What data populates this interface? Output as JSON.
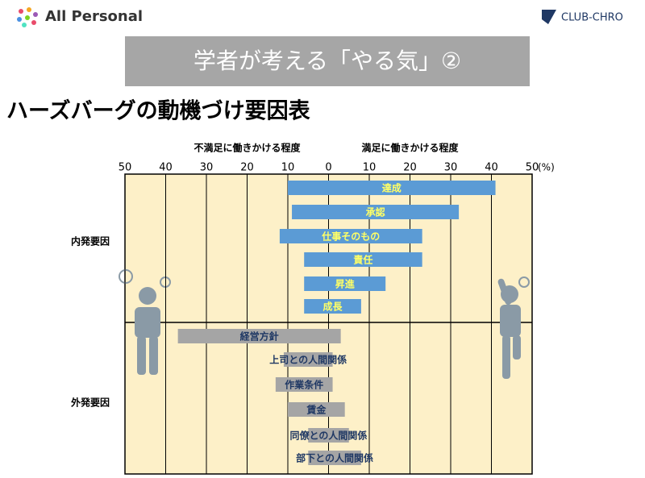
{
  "header": {
    "logo": "All Personal",
    "brand": "CLUB-CHRO",
    "banner": "学者が考える「やる気」②",
    "title": "ハーズバーグの動機づけ要因表"
  },
  "chart_data": {
    "type": "diverging-bar",
    "left_label": "不満足に働きかける程度",
    "right_label": "満足に働きかける程度",
    "unit": "(%)",
    "xlim": [
      -50,
      50
    ],
    "xticks": [
      {
        "value": -50,
        "label": "50"
      },
      {
        "value": -40,
        "label": "40"
      },
      {
        "value": -30,
        "label": "30"
      },
      {
        "value": -20,
        "label": "20"
      },
      {
        "value": -10,
        "label": "10"
      },
      0,
      10,
      20,
      30,
      40,
      50
    ],
    "grid": true,
    "groups": [
      {
        "name": "内発要因",
        "color": "#5b9bd5",
        "label_color": "#ffff66",
        "categories": [
          "達成",
          "承認",
          "仕事そのもの",
          "責任",
          "昇進",
          "成長"
        ],
        "dissatisfaction": [
          -10,
          -9,
          -12,
          -6,
          -6,
          -6
        ],
        "satisfaction": [
          41,
          32,
          23,
          23,
          14,
          8
        ]
      },
      {
        "name": "外発要因",
        "color": "#a5a5a5",
        "label_color": "#1f3864",
        "categories": [
          "経営方針",
          "上司との人間関係",
          "作業条件",
          "賃金",
          "同僚との人間関係",
          "部下との人間関係"
        ],
        "dissatisfaction": [
          -37,
          -11,
          -13,
          -10,
          -5,
          -5
        ],
        "satisfaction": [
          3,
          1,
          1,
          4,
          5,
          8
        ]
      }
    ]
  }
}
